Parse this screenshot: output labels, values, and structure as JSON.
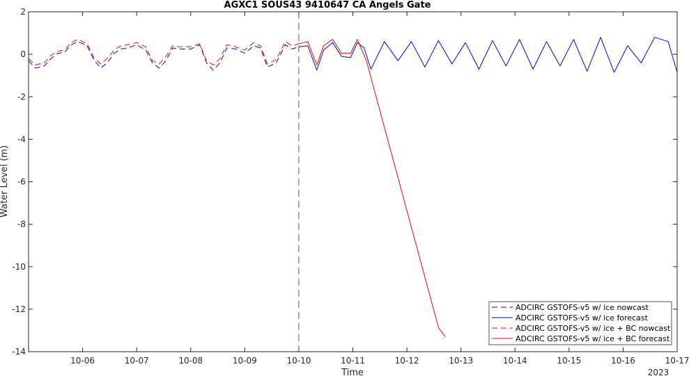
{
  "chart_data": {
    "type": "line",
    "title": "AGXC1 SOUS43 9410647 CA Angels Gate",
    "xlabel": "Time",
    "ylabel": "Water Level (m)",
    "year_label": "2023",
    "xlim": [
      "2023-10-05",
      "2023-10-17"
    ],
    "ylim": [
      -14,
      2
    ],
    "x_ticks": [
      "10-06",
      "10-07",
      "10-08",
      "10-09",
      "10-10",
      "10-11",
      "10-12",
      "10-13",
      "10-14",
      "10-15",
      "10-16",
      "10-17"
    ],
    "y_ticks": [
      2,
      0,
      -2,
      -4,
      -6,
      -8,
      -10,
      -12,
      -14
    ],
    "vertical_marker": "2023-10-10",
    "legend_position": "bottom-right",
    "series": [
      {
        "name": "ADCIRC GSTOFS-v5 w/ ice nowcast",
        "color": "#0000ff",
        "style": "dashed",
        "x": [
          "2023-10-05 00:00",
          "2023-10-05 03:00",
          "2023-10-05 07:00",
          "2023-10-05 10:00",
          "2023-10-05 13:00",
          "2023-10-05 16:00",
          "2023-10-05 19:00",
          "2023-10-05 22:00",
          "2023-10-06 02:00",
          "2023-10-06 05:00",
          "2023-10-06 08:00",
          "2023-10-06 11:00",
          "2023-10-06 14:00",
          "2023-10-06 17:00",
          "2023-10-06 20:00",
          "2023-10-07 00:00",
          "2023-10-07 04:00",
          "2023-10-07 07:00",
          "2023-10-07 10:00",
          "2023-10-07 13:00",
          "2023-10-07 16:00",
          "2023-10-07 19:00",
          "2023-10-08 00:00",
          "2023-10-08 04:00",
          "2023-10-08 07:00",
          "2023-10-08 10:00",
          "2023-10-08 13:00",
          "2023-10-08 16:00",
          "2023-10-08 20:00",
          "2023-10-09 00:00",
          "2023-10-09 04:00",
          "2023-10-09 07:00",
          "2023-10-09 10:00",
          "2023-10-09 14:00",
          "2023-10-09 18:00",
          "2023-10-09 21:00",
          "2023-10-10 00:00"
        ],
        "y": [
          -0.3,
          -0.65,
          -0.55,
          -0.2,
          0.05,
          0.1,
          0.45,
          0.6,
          0.4,
          -0.25,
          -0.65,
          -0.4,
          0.05,
          0.25,
          0.3,
          0.45,
          0.2,
          -0.4,
          -0.65,
          -0.3,
          0.3,
          0.25,
          0.25,
          0.45,
          -0.4,
          -0.75,
          -0.4,
          0.3,
          0.25,
          0.05,
          0.4,
          0.3,
          -0.6,
          -0.4,
          0.45,
          0.25,
          0.35
        ]
      },
      {
        "name": "ADCIRC GSTOFS-v5 w/ ice forecast",
        "color": "#0000ff",
        "style": "solid",
        "x": [
          "2023-10-10 00:00",
          "2023-10-10 04:00",
          "2023-10-10 08:00",
          "2023-10-10 11:00",
          "2023-10-10 15:00",
          "2023-10-10 19:00",
          "2023-10-10 23:00",
          "2023-10-11 02:00",
          "2023-10-11 05:00",
          "2023-10-11 08:00",
          "2023-10-11 14:00",
          "2023-10-11 20:00",
          "2023-10-12 02:00",
          "2023-10-12 08:00",
          "2023-10-12 14:00",
          "2023-10-12 20:00",
          "2023-10-13 02:00",
          "2023-10-13 08:00",
          "2023-10-13 14:00",
          "2023-10-13 20:00",
          "2023-10-14 02:00",
          "2023-10-14 08:00",
          "2023-10-14 14:00",
          "2023-10-14 20:00",
          "2023-10-15 02:00",
          "2023-10-15 08:00",
          "2023-10-15 14:00",
          "2023-10-15 20:00",
          "2023-10-16 02:00",
          "2023-10-16 08:00",
          "2023-10-16 14:00",
          "2023-10-16 20:00",
          "2023-10-17 00:00"
        ],
        "y": [
          0.35,
          0.4,
          -0.75,
          0.2,
          0.55,
          -0.1,
          -0.15,
          0.55,
          0.3,
          -0.7,
          0.6,
          -0.3,
          0.6,
          -0.6,
          0.65,
          -0.45,
          0.55,
          -0.7,
          0.65,
          -0.55,
          0.7,
          -0.7,
          0.6,
          -0.55,
          0.7,
          -0.8,
          0.8,
          -0.85,
          0.4,
          -0.4,
          0.8,
          0.6,
          -0.85
        ]
      },
      {
        "name": "ADCIRC GSTOFS-v5 w/ ice + BC nowcast",
        "color": "#ff0000",
        "style": "dashed",
        "x": [
          "2023-10-05 00:00",
          "2023-10-05 03:00",
          "2023-10-05 07:00",
          "2023-10-05 10:00",
          "2023-10-05 13:00",
          "2023-10-05 16:00",
          "2023-10-05 19:00",
          "2023-10-05 22:00",
          "2023-10-06 02:00",
          "2023-10-06 05:00",
          "2023-10-06 08:00",
          "2023-10-06 11:00",
          "2023-10-06 14:00",
          "2023-10-06 17:00",
          "2023-10-06 20:00",
          "2023-10-07 00:00",
          "2023-10-07 04:00",
          "2023-10-07 07:00",
          "2023-10-07 10:00",
          "2023-10-07 13:00",
          "2023-10-07 16:00",
          "2023-10-07 19:00",
          "2023-10-08 00:00",
          "2023-10-08 04:00",
          "2023-10-08 07:00",
          "2023-10-08 10:00",
          "2023-10-08 13:00",
          "2023-10-08 16:00",
          "2023-10-08 20:00",
          "2023-10-09 00:00",
          "2023-10-09 04:00",
          "2023-10-09 07:00",
          "2023-10-09 10:00",
          "2023-10-09 14:00",
          "2023-10-09 18:00",
          "2023-10-09 21:00",
          "2023-10-10 00:00"
        ],
        "y": [
          -0.2,
          -0.5,
          -0.4,
          -0.05,
          0.15,
          0.2,
          0.55,
          0.7,
          0.5,
          -0.15,
          -0.45,
          -0.2,
          0.2,
          0.4,
          0.45,
          0.55,
          0.35,
          -0.3,
          -0.45,
          -0.1,
          0.4,
          0.35,
          0.35,
          0.5,
          -0.3,
          -0.5,
          -0.2,
          0.45,
          0.35,
          0.2,
          0.55,
          0.4,
          -0.45,
          -0.25,
          0.6,
          0.4,
          0.5
        ]
      },
      {
        "name": "ADCIRC GSTOFS-v5 w/ ice + BC forecast",
        "color": "#ff0000",
        "style": "solid",
        "x": [
          "2023-10-10 00:00",
          "2023-10-10 04:00",
          "2023-10-10 08:00",
          "2023-10-10 11:00",
          "2023-10-10 15:00",
          "2023-10-10 19:00",
          "2023-10-10 23:00",
          "2023-10-11 02:00",
          "2023-10-11 06:00",
          "2023-10-12 14:00",
          "2023-10-12 17:00"
        ],
        "y": [
          0.5,
          0.6,
          -0.5,
          0.4,
          0.7,
          0.05,
          0.05,
          0.7,
          -0.3,
          -12.85,
          -13.3
        ]
      }
    ]
  }
}
